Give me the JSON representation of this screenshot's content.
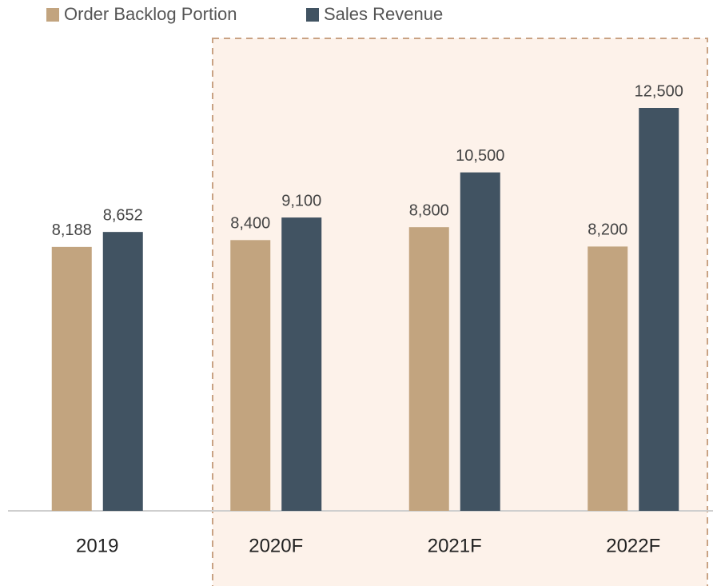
{
  "chart_data": {
    "type": "bar",
    "categories": [
      "2019",
      "2020F",
      "2021F",
      "2022F"
    ],
    "series": [
      {
        "name": "Order Backlog Portion",
        "color": "#c2a47f",
        "values": [
          8188,
          8400,
          8800,
          8200
        ],
        "value_labels": [
          "8,188",
          "8,400",
          "8,800",
          "8,200"
        ]
      },
      {
        "name": "Sales Revenue",
        "color": "#415362",
        "values": [
          8652,
          9100,
          10500,
          12500
        ],
        "value_labels": [
          "8,652",
          "9,100",
          "10,500",
          "12,500"
        ]
      }
    ],
    "ylim": [
      0,
      15000
    ]
  }
}
